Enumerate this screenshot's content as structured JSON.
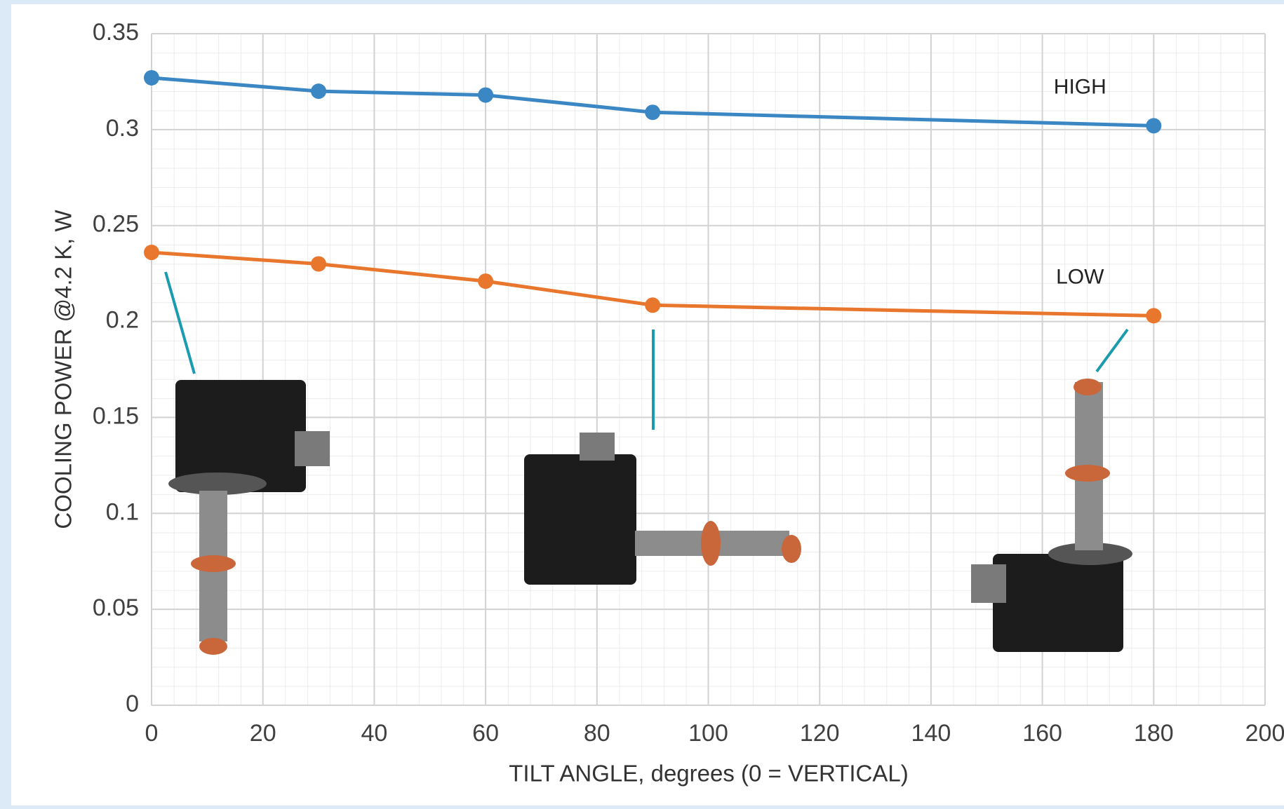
{
  "chart_data": {
    "type": "line",
    "x_label": "TILT ANGLE, degrees (0 = VERTICAL)",
    "y_label": "COOLING POWER @4.2 K, W",
    "x": [
      0,
      30,
      60,
      90,
      180
    ],
    "series": [
      {
        "name": "HIGH",
        "color": "#3b87c4",
        "values": [
          0.327,
          0.32,
          0.318,
          0.309,
          0.302
        ]
      },
      {
        "name": "LOW",
        "color": "#e8762c",
        "values": [
          0.236,
          0.23,
          0.221,
          0.2085,
          0.203
        ]
      }
    ],
    "xlim": [
      0,
      200
    ],
    "xticks": [
      0,
      20,
      40,
      60,
      80,
      100,
      120,
      140,
      160,
      180,
      200
    ],
    "ylim": [
      0,
      0.35
    ],
    "yticks": [
      0,
      0.05,
      0.1,
      0.15,
      0.2,
      0.25,
      0.3,
      0.35
    ],
    "grid": true
  }
}
